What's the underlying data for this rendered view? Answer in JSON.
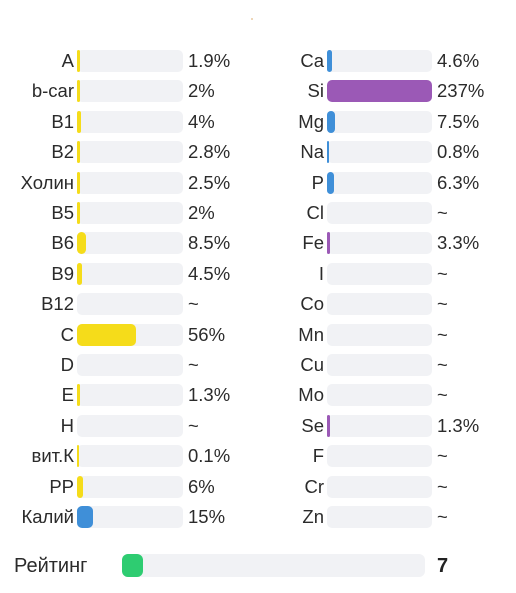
{
  "vitamins": [
    {
      "label": "A",
      "value_text": "1.9%",
      "percent": 1.9
    },
    {
      "label": "b-car",
      "value_text": "2%",
      "percent": 2
    },
    {
      "label": "B1",
      "value_text": "4%",
      "percent": 4
    },
    {
      "label": "B2",
      "value_text": "2.8%",
      "percent": 2.8
    },
    {
      "label": "Холин",
      "value_text": "2.5%",
      "percent": 2.5
    },
    {
      "label": "B5",
      "value_text": "2%",
      "percent": 2
    },
    {
      "label": "B6",
      "value_text": "8.5%",
      "percent": 8.5
    },
    {
      "label": "B9",
      "value_text": "4.5%",
      "percent": 4.5
    },
    {
      "label": "B12",
      "value_text": "~",
      "percent": 0
    },
    {
      "label": "C",
      "value_text": "56%",
      "percent": 56
    },
    {
      "label": "D",
      "value_text": "~",
      "percent": 0
    },
    {
      "label": "E",
      "value_text": "1.3%",
      "percent": 1.3
    },
    {
      "label": "H",
      "value_text": "~",
      "percent": 0
    },
    {
      "label": "вит.К",
      "value_text": "0.1%",
      "percent": 0.1
    },
    {
      "label": "PP",
      "value_text": "6%",
      "percent": 6
    },
    {
      "label": "Калий",
      "value_text": "15%",
      "percent": 15
    }
  ],
  "minerals": [
    {
      "label": "Ca",
      "value_text": "4.6%",
      "percent": 4.6
    },
    {
      "label": "Si",
      "value_text": "237%",
      "percent": 237
    },
    {
      "label": "Mg",
      "value_text": "7.5%",
      "percent": 7.5
    },
    {
      "label": "Na",
      "value_text": "0.8%",
      "percent": 0.8
    },
    {
      "label": "P",
      "value_text": "6.3%",
      "percent": 6.3
    },
    {
      "label": "Cl",
      "value_text": "~",
      "percent": 0
    },
    {
      "label": "Fe",
      "value_text": "3.3%",
      "percent": 3.3
    },
    {
      "label": "I",
      "value_text": "~",
      "percent": 0
    },
    {
      "label": "Co",
      "value_text": "~",
      "percent": 0
    },
    {
      "label": "Mn",
      "value_text": "~",
      "percent": 0
    },
    {
      "label": "Cu",
      "value_text": "~",
      "percent": 0
    },
    {
      "label": "Mo",
      "value_text": "~",
      "percent": 0
    },
    {
      "label": "Se",
      "value_text": "1.3%",
      "percent": 1.3
    },
    {
      "label": "F",
      "value_text": "~",
      "percent": 0
    },
    {
      "label": "Cr",
      "value_text": "~",
      "percent": 0
    },
    {
      "label": "Zn",
      "value_text": "~",
      "percent": 0
    }
  ],
  "rating": {
    "label": "Рейтинг",
    "value": "7",
    "fraction": 0.07
  },
  "colors": {
    "vitamin_bar": "#f5dc1a",
    "potassium_bar": "#3f8fd8",
    "mineral_bar_blue": "#3f8fd8",
    "mineral_bar_purple": "#9b59b6",
    "rating_bar": "#2ecc71",
    "track": "#f1f2f5"
  }
}
